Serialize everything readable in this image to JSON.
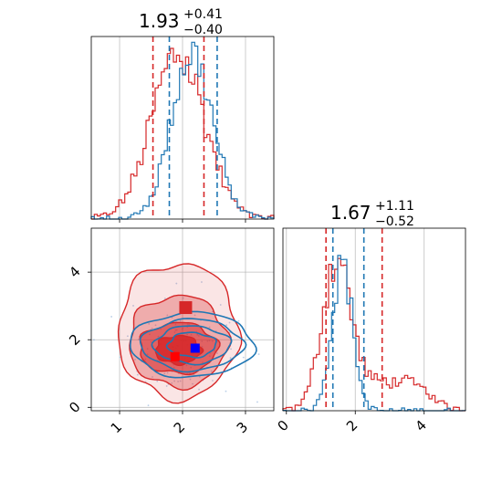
{
  "colors": {
    "red": "#d62728",
    "blue": "#1f77b4",
    "grid": "#b0b0b0"
  },
  "chart_data": {
    "type": "corner",
    "panels": {
      "hist_x": {
        "title": {
          "value": "1.93",
          "upper": "+0.41",
          "lower": "−0.40"
        },
        "xlim": [
          0.55,
          3.45
        ],
        "grid_x": [
          1,
          2,
          3
        ],
        "quantiles": {
          "red": [
            1.53,
            2.34
          ],
          "blue": [
            1.79,
            2.55
          ]
        }
      },
      "hist_y": {
        "title": {
          "value": "1.67",
          "upper": "+1.11",
          "lower": "−0.52"
        },
        "xlim": [
          -0.1,
          5.2
        ],
        "xticks": [
          0,
          2,
          4
        ],
        "xtick_labels": [
          "0",
          "2",
          "4"
        ],
        "quantiles": {
          "red": [
            1.15,
            2.78
          ],
          "blue": [
            1.35,
            2.25
          ]
        }
      },
      "joint": {
        "xlim": [
          0.55,
          3.45
        ],
        "ylim": [
          -0.1,
          5.3
        ],
        "xticks": [
          1,
          2,
          3
        ],
        "xtick_labels": [
          "1",
          "2",
          "3"
        ],
        "yticks": [
          0,
          2,
          4
        ],
        "ytick_labels": [
          "0",
          "2",
          "4"
        ],
        "truth_markers": {
          "red": [
            1.88,
            1.5
          ],
          "blue": [
            2.2,
            1.75
          ]
        }
      }
    },
    "series": [
      {
        "color": "red",
        "mean": [
          1.93,
          1.8
        ],
        "sd": [
          0.42,
          0.75
        ]
      },
      {
        "color": "blue",
        "mean": [
          2.15,
          1.75
        ],
        "sd": [
          0.33,
          0.42
        ]
      }
    ]
  }
}
